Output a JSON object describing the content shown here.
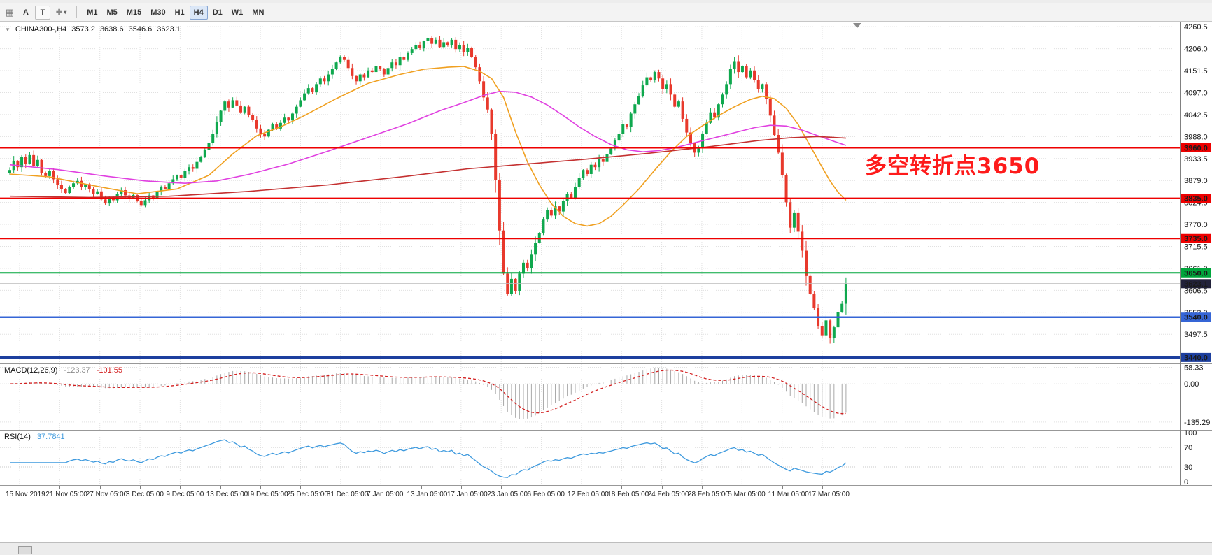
{
  "toolbar": {
    "windows_icon_glyph": "▦",
    "text_tool": "A",
    "label_tool": "T",
    "cycle_tool_glyph": "✚",
    "cycle_dropdown_glyph": "▾",
    "timeframes": [
      {
        "label": "M1",
        "selected": false
      },
      {
        "label": "M5",
        "selected": false
      },
      {
        "label": "M15",
        "selected": false
      },
      {
        "label": "M30",
        "selected": false
      },
      {
        "label": "H1",
        "selected": false
      },
      {
        "label": "H4",
        "selected": true
      },
      {
        "label": "D1",
        "selected": false
      },
      {
        "label": "W1",
        "selected": false
      },
      {
        "label": "MN",
        "selected": false
      }
    ]
  },
  "chart": {
    "header": {
      "collapse_icon": "▼",
      "symbol_tf": "CHINA300-,H4",
      "open": "3573.2",
      "high": "3638.6",
      "low": "3546.6",
      "close": "3623.1"
    }
  },
  "annotation": {
    "text": "多空转折点3650",
    "color": "#fe1b1b"
  },
  "price_axis": {
    "ticks": [
      "4260.5",
      "4206.0",
      "4151.5",
      "4097.0",
      "4042.5",
      "3988.0",
      "3933.5",
      "3879.0",
      "3824.5",
      "3770.0",
      "3715.5",
      "3661.0",
      "3606.5",
      "3552.0",
      "3497.5",
      "3443.0"
    ]
  },
  "levels": [
    {
      "label": "3960.0",
      "value": 3960.0,
      "line_color": "#ee0000",
      "tag_color": "#ee0000",
      "width": 2
    },
    {
      "label": "3835.0",
      "value": 3835.0,
      "line_color": "#ee0000",
      "tag_color": "#ee0000",
      "width": 2
    },
    {
      "label": "3735.0",
      "value": 3735.0,
      "line_color": "#ee0000",
      "tag_color": "#ee0000",
      "width": 2
    },
    {
      "label": "3650.0",
      "value": 3650.0,
      "line_color": "#00a53c",
      "tag_color": "#00a53c",
      "width": 2
    },
    {
      "label": "3623.1",
      "value": 3623.1,
      "line_color": "#bcbcbc",
      "tag_color": "#22223a",
      "width": 1
    },
    {
      "label": "3540.0",
      "value": 3540.0,
      "line_color": "#3565d6",
      "tag_color": "#3565d6",
      "width": 2.5
    },
    {
      "label": "3440.0",
      "value": 3440.0,
      "line_color": "#1d3f9e",
      "tag_color": "#1d3f9e",
      "width": 3.5
    }
  ],
  "macd_panel": {
    "label": "MACD(12,26,9)",
    "value_main": "-123.37",
    "value_signal": "-101.55",
    "axis": [
      "58.33",
      "0.00",
      "-135.29"
    ]
  },
  "rsi_panel": {
    "label": "RSI(14)",
    "value": "37.7841",
    "axis": [
      "100",
      "70",
      "30",
      "0"
    ],
    "guide_levels": [
      70,
      30
    ]
  },
  "colors": {
    "bull": "#0fa84e",
    "bear": "#e8392c",
    "grid": "#e0e0e0",
    "axis_line": "#808080",
    "macd_hist": "#a8a8a8",
    "macd_signal": "#d32020",
    "rsi_line": "#3e9ade"
  },
  "chart_data": {
    "type": "candlestick",
    "symbol": "CHINA300-",
    "timeframe": "H4",
    "title": "CHINA300-,H4 3573.2 3638.6 3546.6 3623.1",
    "y_range": [
      3432,
      4266
    ],
    "last_candle_ohlc": {
      "open": 3573.2,
      "high": 3638.6,
      "low": 3546.6,
      "close": 3623.1
    },
    "closes": [
      3905,
      3928,
      3912,
      3938,
      3920,
      3942,
      3915,
      3930,
      3898,
      3890,
      3902,
      3882,
      3868,
      3858,
      3848,
      3862,
      3872,
      3878,
      3862,
      3870,
      3858,
      3845,
      3852,
      3832,
      3822,
      3838,
      3830,
      3846,
      3855,
      3842,
      3835,
      3843,
      3828,
      3818,
      3830,
      3842,
      3836,
      3852,
      3862,
      3858,
      3872,
      3882,
      3892,
      3885,
      3902,
      3912,
      3908,
      3925,
      3938,
      3955,
      3972,
      3995,
      4025,
      4052,
      4075,
      4060,
      4078,
      4065,
      4048,
      4062,
      4042,
      4030,
      4008,
      3995,
      3988,
      4005,
      4018,
      4008,
      4022,
      4035,
      4028,
      4045,
      4062,
      4078,
      4095,
      4108,
      4098,
      4118,
      4132,
      4125,
      4142,
      4155,
      4172,
      4185,
      4178,
      4158,
      4138,
      4125,
      4142,
      4135,
      4152,
      4148,
      4162,
      4155,
      4142,
      4158,
      4172,
      4165,
      4185,
      4178,
      4195,
      4205,
      4215,
      4208,
      4225,
      4232,
      4218,
      4228,
      4210,
      4222,
      4215,
      4228,
      4205,
      4215,
      4198,
      4208,
      4185,
      4160,
      4125,
      4085,
      4055,
      3995,
      3880,
      3755,
      3648,
      3598,
      3635,
      3605,
      3648,
      3675,
      3662,
      3695,
      3725,
      3748,
      3782,
      3805,
      3792,
      3815,
      3802,
      3828,
      3845,
      3835,
      3862,
      3885,
      3905,
      3895,
      3918,
      3912,
      3932,
      3925,
      3945,
      3958,
      3978,
      3995,
      4018,
      4012,
      4045,
      4068,
      4088,
      4115,
      4135,
      4128,
      4148,
      4132,
      4105,
      4118,
      4092,
      4062,
      4075,
      4032,
      3998,
      3972,
      3948,
      3962,
      3995,
      4022,
      4048,
      4035,
      4068,
      4092,
      4118,
      4155,
      4175,
      4148,
      4162,
      4135,
      4152,
      4128,
      4105,
      4118,
      4082,
      4040,
      3992,
      3948,
      3892,
      3825,
      3762,
      3798,
      3752,
      3705,
      3642,
      3598,
      3562,
      3518,
      3495,
      3532,
      3488,
      3515,
      3552,
      3573,
      3623.1
    ],
    "x_labels": [
      "15 Nov 2019",
      "21 Nov 05:00",
      "27 Nov 05:00",
      "3 Dec 05:00",
      "9 Dec 05:00",
      "13 Dec 05:00",
      "19 Dec 05:00",
      "25 Dec 05:00",
      "31 Dec 05:00",
      "7 Jan 05:00",
      "13 Jan 05:00",
      "17 Jan 05:00",
      "23 Jan 05:00",
      "6 Feb 05:00",
      "12 Feb 05:00",
      "18 Feb 05:00",
      "24 Feb 05:00",
      "28 Feb 05:00",
      "5 Mar 05:00",
      "11 Mar 05:00",
      "17 Mar 05:00"
    ],
    "horizontal_levels": [
      3960.0,
      3835.0,
      3735.0,
      3650.0,
      3623.1,
      3540.0,
      3440.0
    ],
    "moving_averages": [
      {
        "name": "fast",
        "color": "#f0a020",
        "points": [
          [
            0,
            3895
          ],
          [
            10,
            3888
          ],
          [
            20,
            3868
          ],
          [
            32,
            3846
          ],
          [
            42,
            3858
          ],
          [
            50,
            3892
          ],
          [
            56,
            3945
          ],
          [
            62,
            3990
          ],
          [
            68,
            4012
          ],
          [
            74,
            4040
          ],
          [
            82,
            4082
          ],
          [
            90,
            4120
          ],
          [
            98,
            4142
          ],
          [
            104,
            4155
          ],
          [
            110,
            4160
          ],
          [
            114,
            4162
          ],
          [
            118,
            4150
          ],
          [
            121,
            4132
          ],
          [
            124,
            4085
          ],
          [
            127,
            4000
          ],
          [
            130,
            3925
          ],
          [
            133,
            3868
          ],
          [
            136,
            3822
          ],
          [
            139,
            3790
          ],
          [
            142,
            3772
          ],
          [
            145,
            3766
          ],
          [
            148,
            3772
          ],
          [
            151,
            3790
          ],
          [
            154,
            3818
          ],
          [
            158,
            3858
          ],
          [
            162,
            3905
          ],
          [
            166,
            3950
          ],
          [
            170,
            3988
          ],
          [
            174,
            4015
          ],
          [
            178,
            4040
          ],
          [
            182,
            4062
          ],
          [
            186,
            4080
          ],
          [
            189,
            4088
          ],
          [
            192,
            4082
          ],
          [
            195,
            4058
          ],
          [
            198,
            4018
          ],
          [
            201,
            3965
          ],
          [
            204,
            3912
          ],
          [
            206,
            3878
          ],
          [
            208,
            3850
          ],
          [
            210,
            3830
          ]
        ]
      },
      {
        "name": "medium",
        "color": "#e040e0",
        "points": [
          [
            0,
            3918
          ],
          [
            12,
            3906
          ],
          [
            24,
            3890
          ],
          [
            34,
            3878
          ],
          [
            44,
            3872
          ],
          [
            52,
            3878
          ],
          [
            60,
            3894
          ],
          [
            70,
            3920
          ],
          [
            80,
            3952
          ],
          [
            90,
            3986
          ],
          [
            100,
            4020
          ],
          [
            108,
            4052
          ],
          [
            114,
            4072
          ],
          [
            119,
            4090
          ],
          [
            123,
            4100
          ],
          [
            127,
            4098
          ],
          [
            131,
            4086
          ],
          [
            135,
            4066
          ],
          [
            139,
            4040
          ],
          [
            143,
            4012
          ],
          [
            147,
            3988
          ],
          [
            151,
            3968
          ],
          [
            155,
            3955
          ],
          [
            159,
            3950
          ],
          [
            163,
            3953
          ],
          [
            167,
            3960
          ],
          [
            171,
            3970
          ],
          [
            175,
            3980
          ],
          [
            179,
            3990
          ],
          [
            183,
            4000
          ],
          [
            187,
            4010
          ],
          [
            191,
            4016
          ],
          [
            195,
            4014
          ],
          [
            199,
            4004
          ],
          [
            203,
            3990
          ],
          [
            207,
            3976
          ],
          [
            210,
            3966
          ]
        ]
      },
      {
        "name": "slow",
        "color": "#c43030",
        "points": [
          [
            0,
            3840
          ],
          [
            20,
            3837
          ],
          [
            40,
            3840
          ],
          [
            60,
            3852
          ],
          [
            80,
            3868
          ],
          [
            100,
            3890
          ],
          [
            115,
            3908
          ],
          [
            130,
            3920
          ],
          [
            145,
            3932
          ],
          [
            160,
            3946
          ],
          [
            175,
            3962
          ],
          [
            188,
            3978
          ],
          [
            196,
            3985
          ],
          [
            203,
            3988
          ],
          [
            210,
            3984
          ]
        ]
      }
    ],
    "indicators": {
      "macd": {
        "fast": 12,
        "slow": 26,
        "signal": 9,
        "current_macd": -123.37,
        "current_signal": -101.55,
        "axis_range": [
          -135.29,
          58.33
        ]
      },
      "rsi": {
        "period": 14,
        "current": 37.7841,
        "guide_levels": [
          70,
          30
        ],
        "axis_range": [
          0,
          100
        ]
      }
    }
  }
}
